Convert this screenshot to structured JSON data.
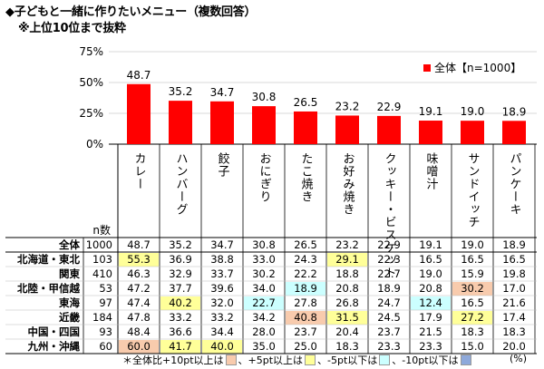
{
  "title": "◆子どもと一緒に作りたいメニュー（複数回答）",
  "subtitle": "※上位10位まで抜粋",
  "legend_label": "全体【n=1000】",
  "n_header": "n数",
  "colors": {
    "bar": "#ff0000",
    "plus10": "#f8cbad",
    "plus5": "#ffff99",
    "minus5": "#ccffff",
    "minus10": "#8ea9db"
  },
  "chart_data": {
    "type": "bar",
    "categories": [
      "カレー",
      "ハンバーグ",
      "餃子",
      "おにぎり",
      "たこ焼き",
      "お好み焼き",
      "クッキー・ビスケット",
      "味噌汁",
      "サンドイッチ",
      "パンケーキ"
    ],
    "values": [
      48.7,
      35.2,
      34.7,
      30.8,
      26.5,
      23.2,
      22.9,
      19.1,
      19.0,
      18.9
    ],
    "value_labels": [
      "48.7",
      "35.2",
      "34.7",
      "30.8",
      "26.5",
      "23.2",
      "22.9",
      "19.1",
      "19.0",
      "18.9"
    ],
    "ylim": [
      0,
      75
    ],
    "yticks": [
      "0%",
      "25%",
      "50%",
      "75%"
    ],
    "table": {
      "rows": [
        {
          "region": "全体",
          "n": "1000",
          "values": [
            "48.7",
            "35.2",
            "34.7",
            "30.8",
            "26.5",
            "23.2",
            "22.9",
            "19.1",
            "19.0",
            "18.9"
          ],
          "hl": [
            "",
            "",
            "",
            "",
            "",
            "",
            "",
            "",
            "",
            ""
          ]
        },
        {
          "region": "北海道・東北",
          "n": "103",
          "values": [
            "55.3",
            "36.9",
            "38.8",
            "33.0",
            "24.3",
            "29.1",
            "22.3",
            "16.5",
            "16.5",
            "16.5"
          ],
          "hl": [
            "plus5",
            "",
            "",
            "",
            "",
            "plus5",
            "",
            "",
            "",
            ""
          ]
        },
        {
          "region": "関東",
          "n": "410",
          "values": [
            "46.3",
            "32.9",
            "33.7",
            "30.2",
            "22.2",
            "18.8",
            "22.7",
            "19.0",
            "15.9",
            "19.8"
          ],
          "hl": [
            "",
            "",
            "",
            "",
            "",
            "",
            "",
            "",
            "",
            ""
          ]
        },
        {
          "region": "北陸・甲信越",
          "n": "53",
          "values": [
            "47.2",
            "37.7",
            "39.6",
            "34.0",
            "18.9",
            "20.8",
            "18.9",
            "20.8",
            "30.2",
            "17.0"
          ],
          "hl": [
            "",
            "",
            "",
            "",
            "minus5",
            "",
            "",
            "",
            "plus10",
            ""
          ]
        },
        {
          "region": "東海",
          "n": "97",
          "values": [
            "47.4",
            "40.2",
            "32.0",
            "22.7",
            "27.8",
            "26.8",
            "24.7",
            "12.4",
            "16.5",
            "21.6"
          ],
          "hl": [
            "",
            "plus5",
            "",
            "minus5",
            "",
            "",
            "",
            "minus5",
            "",
            ""
          ]
        },
        {
          "region": "近畿",
          "n": "184",
          "values": [
            "47.8",
            "33.2",
            "33.2",
            "34.2",
            "40.8",
            "31.5",
            "24.5",
            "17.9",
            "27.2",
            "17.4"
          ],
          "hl": [
            "",
            "",
            "",
            "",
            "plus10",
            "plus5",
            "",
            "",
            "plus5",
            ""
          ]
        },
        {
          "region": "中国・四国",
          "n": "93",
          "values": [
            "48.4",
            "36.6",
            "34.4",
            "28.0",
            "23.7",
            "20.4",
            "23.7",
            "21.5",
            "18.3",
            "18.3"
          ],
          "hl": [
            "",
            "",
            "",
            "",
            "",
            "",
            "",
            "",
            "",
            ""
          ]
        },
        {
          "region": "九州・沖縄",
          "n": "60",
          "values": [
            "60.0",
            "41.7",
            "40.0",
            "35.0",
            "25.0",
            "18.3",
            "23.3",
            "23.3",
            "15.0",
            "20.0"
          ],
          "hl": [
            "plus10",
            "plus5",
            "plus5",
            "",
            "",
            "",
            "",
            "",
            "",
            ""
          ]
        }
      ]
    }
  },
  "footnote": {
    "prefix": "＊全体比+10pt以上は",
    "t2": "、+5pt以上は",
    "t3": "、-5pt以下は",
    "t4": "、-10pt以下は",
    "suffix": "(%)"
  }
}
